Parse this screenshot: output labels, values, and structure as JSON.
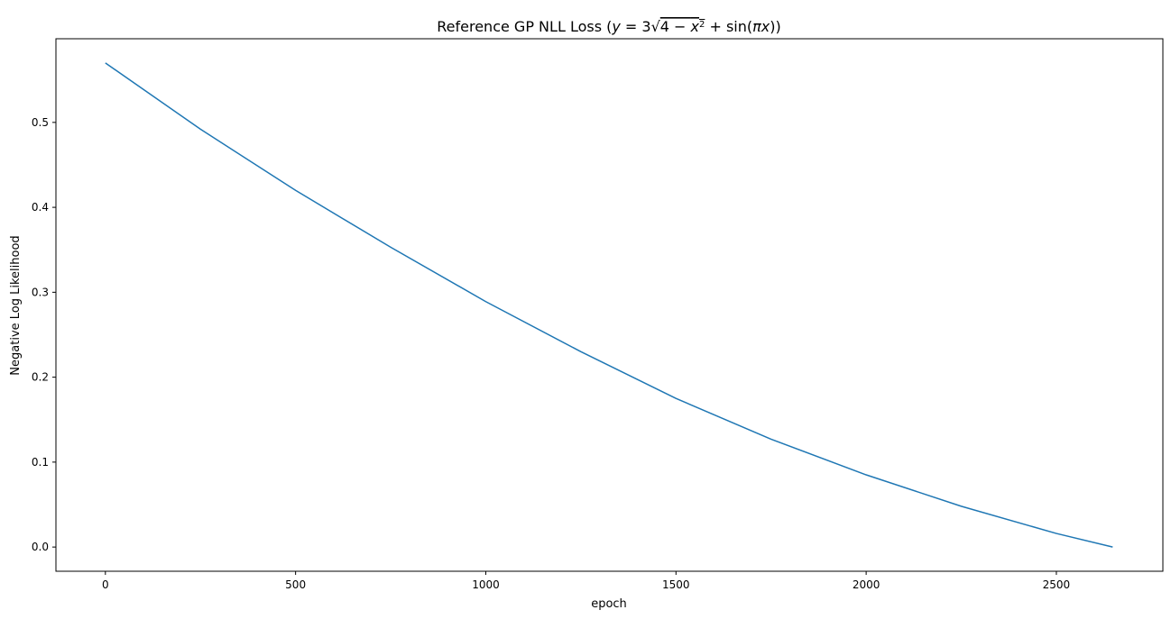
{
  "chart_data": {
    "type": "line",
    "title": "Reference GP NLL Loss ($y = 3\\sqrt{4 - x^2} + \\sin(\\pi x)$)",
    "xlabel": "epoch",
    "ylabel": "Negative Log Likelihood",
    "xlim": [
      -130,
      2780
    ],
    "ylim": [
      -0.0285,
      0.5985
    ],
    "x_ticks": [
      0,
      500,
      1000,
      1500,
      2000,
      2500
    ],
    "x_tick_labels": [
      "0",
      "500",
      "1000",
      "1500",
      "2000",
      "2500"
    ],
    "y_ticks": [
      0.0,
      0.1,
      0.2,
      0.3,
      0.4,
      0.5
    ],
    "y_tick_labels": [
      "0.0",
      "0.1",
      "0.2",
      "0.3",
      "0.4",
      "0.5"
    ],
    "grid": false,
    "series": [
      {
        "color": "#1f77b4",
        "x": [
          0,
          250,
          500,
          750,
          1000,
          1250,
          1500,
          1750,
          2000,
          2250,
          2500,
          2648
        ],
        "y": [
          0.57,
          0.492,
          0.42,
          0.353,
          0.289,
          0.23,
          0.175,
          0.127,
          0.085,
          0.048,
          0.016,
          0.0
        ]
      }
    ]
  }
}
